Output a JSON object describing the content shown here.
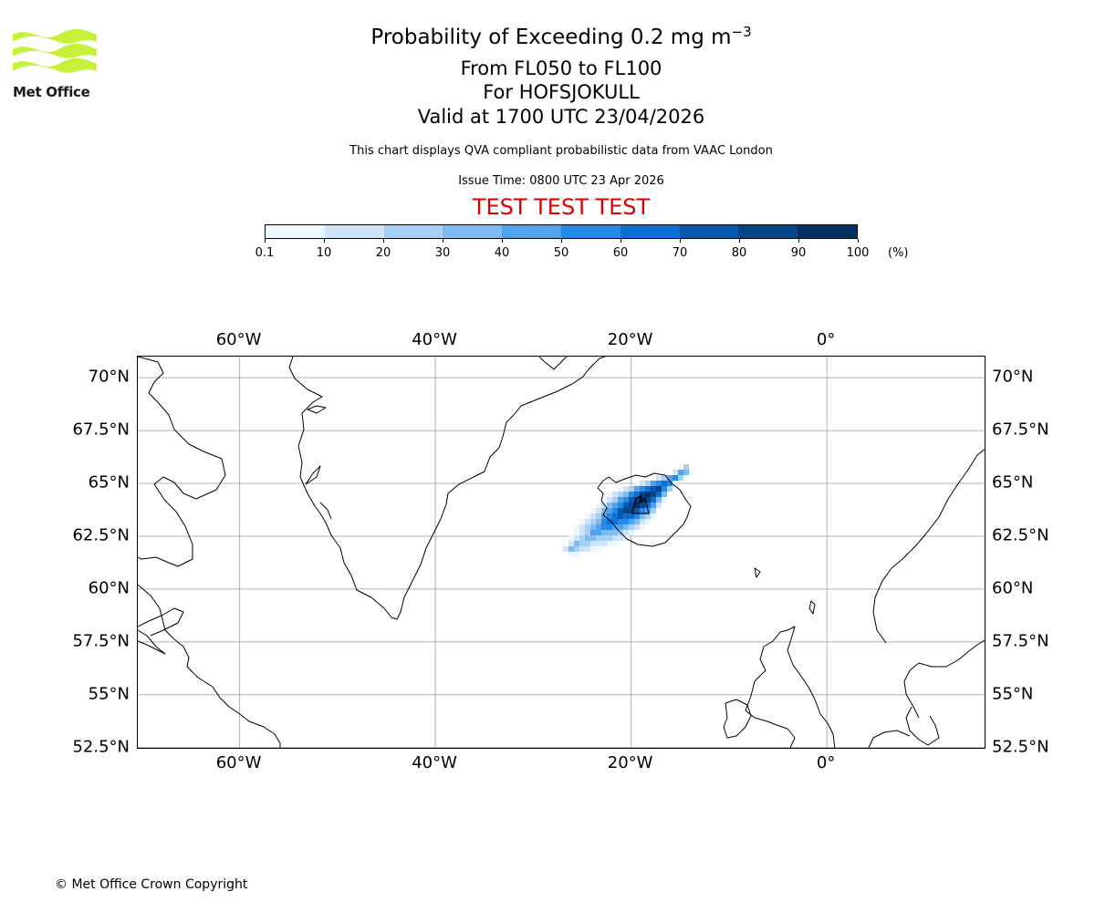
{
  "logo": {
    "text": "Met Office",
    "color": "#c8f23a"
  },
  "title": {
    "line1": "Probability of Exceeding 0.2 mg m",
    "line1_exponent": "−3",
    "line2": "From FL050 to FL100",
    "line3": "For HOFSJOKULL",
    "line4": "Valid at 1700 UTC 23/04/2026"
  },
  "notes": {
    "description": "This chart displays QVA compliant probabilistic data from VAAC London",
    "issue_time": "Issue Time: 0800 UTC 23 Apr 2026",
    "test_banner": "TEST TEST TEST",
    "test_color": "#dd0000"
  },
  "colorbar": {
    "ticks": [
      "0.1",
      "10",
      "20",
      "30",
      "40",
      "50",
      "60",
      "70",
      "80",
      "90",
      "100"
    ],
    "unit": "(%)",
    "colors": [
      "#eef6ff",
      "#cde4f9",
      "#a8d0f4",
      "#7fbbf0",
      "#50a3ec",
      "#248ae8",
      "#0d6fd4",
      "#0858b0",
      "#044487",
      "#023060"
    ]
  },
  "map": {
    "lon_labels": [
      "60°W",
      "40°W",
      "20°W",
      "0°"
    ],
    "lat_labels": [
      "70°N",
      "67.5°N",
      "65°N",
      "62.5°N",
      "60°N",
      "57.5°N",
      "55°N",
      "52.5°N"
    ],
    "lon_values": [
      -60,
      -40,
      -20,
      0
    ],
    "lat_values": [
      70,
      67.5,
      65,
      62.5,
      60,
      57.5,
      55,
      52.5
    ],
    "extent": {
      "lon_min": -70.4,
      "lon_max": 16.3,
      "lat_min": 52.4,
      "lat_max": 71.0
    },
    "volcano": "HOFSJOKULL"
  },
  "copyright": "© Met Office Crown Copyright"
}
